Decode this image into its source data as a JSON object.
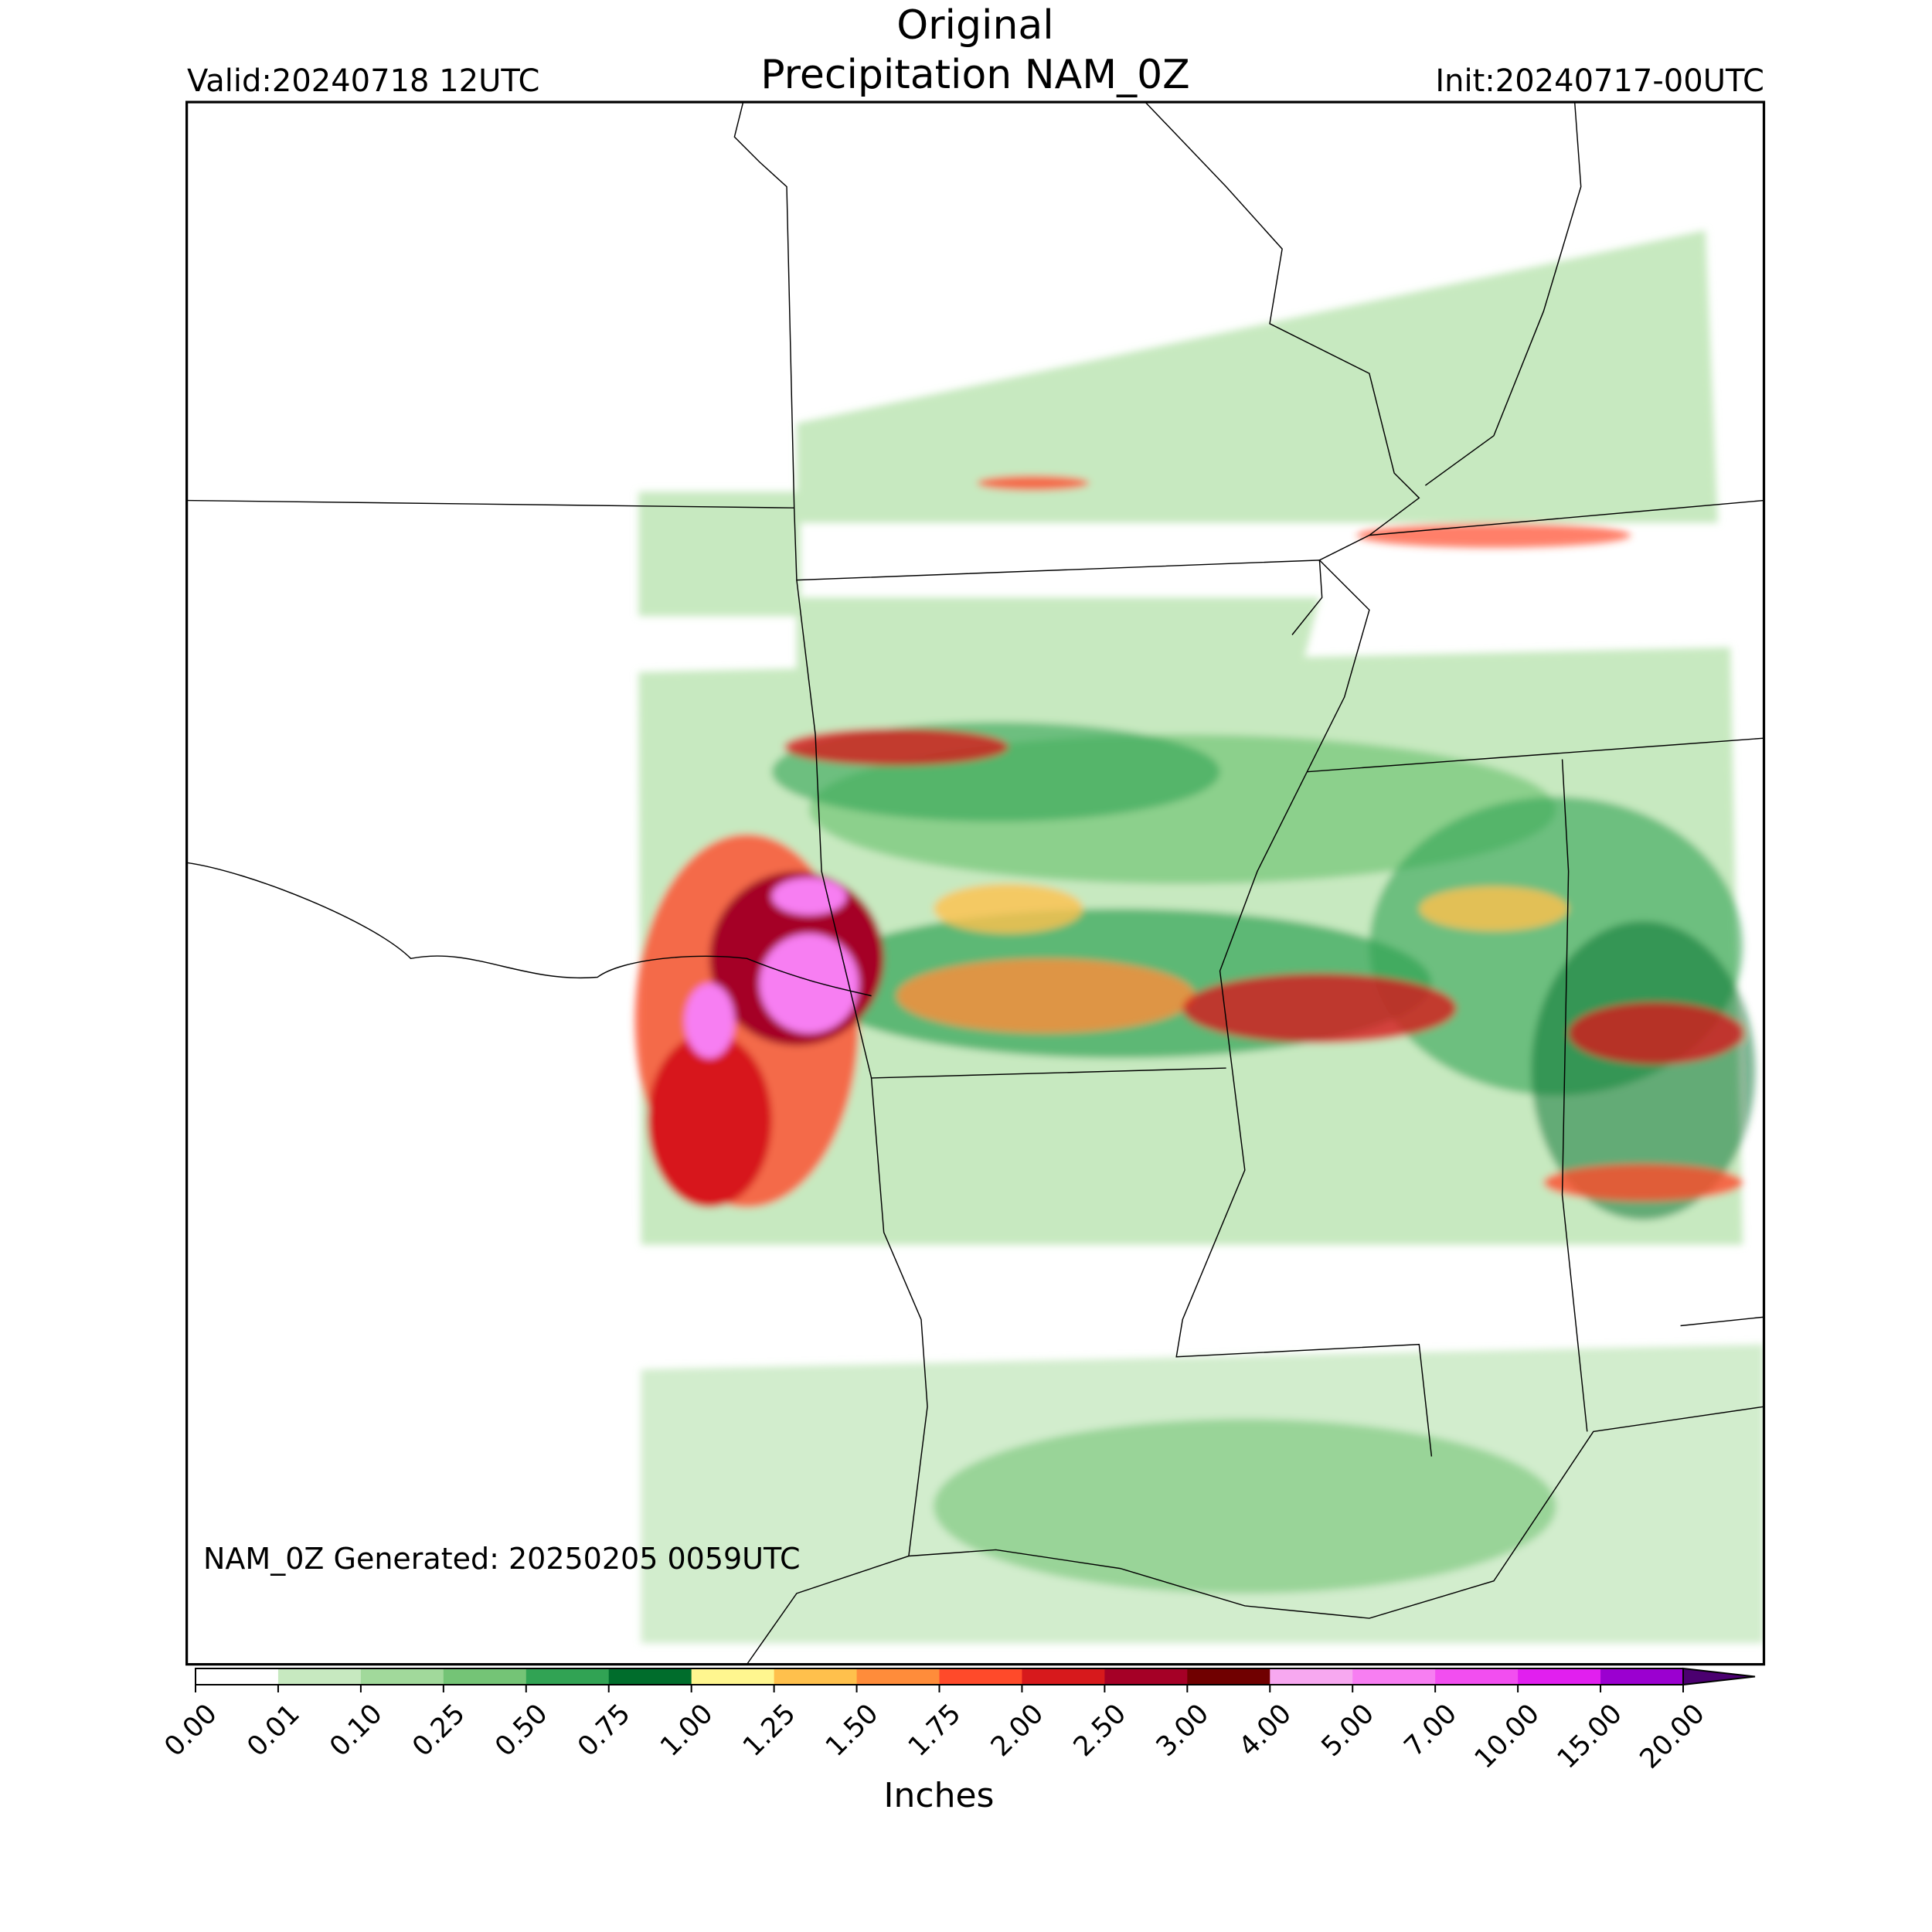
{
  "header": {
    "title": "Original",
    "subtitle": "Precipitation NAM_0Z",
    "valid": "Valid:20240718 12UTC",
    "init": "Init:20240717-00UTC"
  },
  "footer": "NAM_0Z Generated: 20250205 0059UTC",
  "colorbar": {
    "label": "Inches",
    "levels": [
      {
        "value": 0,
        "label": "0.00"
      },
      {
        "value": 0.01,
        "label": "0.01"
      },
      {
        "value": 0.1,
        "label": "0.10"
      },
      {
        "value": 0.25,
        "label": "0.25"
      },
      {
        "value": 0.5,
        "label": "0.50"
      },
      {
        "value": 0.75,
        "label": "0.75"
      },
      {
        "value": 1,
        "label": "1.00"
      },
      {
        "value": 1.25,
        "label": "1.25"
      },
      {
        "value": 1.5,
        "label": "1.50"
      },
      {
        "value": 1.75,
        "label": "1.75"
      },
      {
        "value": 2,
        "label": "2.00"
      },
      {
        "value": 2.5,
        "label": "2.50"
      },
      {
        "value": 3,
        "label": "3.00"
      },
      {
        "value": 4,
        "label": "4.00"
      },
      {
        "value": 5,
        "label": "5.00"
      },
      {
        "value": 7,
        "label": "7.00"
      },
      {
        "value": 10,
        "label": "10.00"
      },
      {
        "value": 15,
        "label": "15.00"
      },
      {
        "value": 20,
        "label": "20.00"
      }
    ],
    "colors": [
      "#ffffff",
      "#c7e9c0",
      "#a1d99b",
      "#74c476",
      "#31a354",
      "#006d2c",
      "#fff68f",
      "#ffc04c",
      "#ff8c3a",
      "#ff4a2a",
      "#d7191c",
      "#a50026",
      "#700000",
      "#f7a8f0",
      "#f77ef2",
      "#f24ef0",
      "#e11fef",
      "#9b00d0"
    ],
    "extend_color": "#4b0070"
  }
}
